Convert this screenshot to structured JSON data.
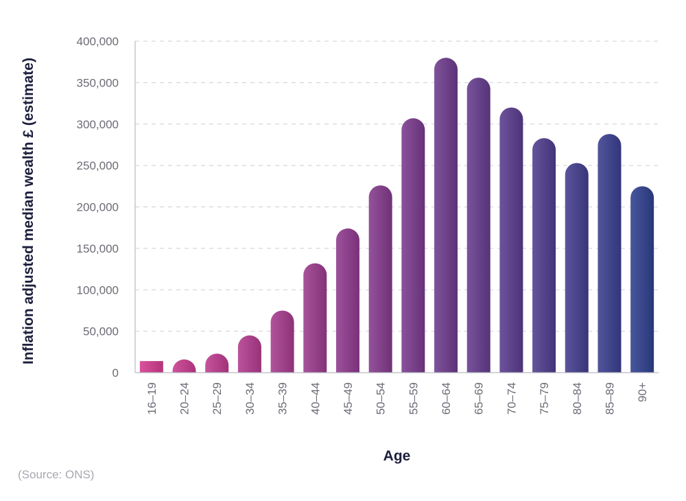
{
  "chart_data": {
    "type": "bar",
    "categories": [
      "16–19",
      "20–24",
      "25–29",
      "30–34",
      "35–39",
      "40–44",
      "45–49",
      "50–54",
      "55–59",
      "60–64",
      "65–69",
      "70–74",
      "75–79",
      "80–84",
      "85–89",
      "90+"
    ],
    "values": [
      14000,
      16000,
      23000,
      45000,
      75000,
      132000,
      174000,
      226000,
      307000,
      380000,
      356000,
      320000,
      283000,
      253000,
      288000,
      225000
    ],
    "xlabel": "Age",
    "ylabel": "Inflation adjusted median wealth £ (estimate)",
    "ylim": [
      0,
      400000
    ],
    "yticks": [
      "0",
      "50,000",
      "100,000",
      "150,000",
      "200,000",
      "250,000",
      "300,000",
      "350,000",
      "400,000"
    ],
    "grid": true,
    "colors": {
      "start": "#d43c8f",
      "middle": "#7e3a8c",
      "end": "#2f3f8e"
    }
  },
  "source": "(Source: ONS)"
}
